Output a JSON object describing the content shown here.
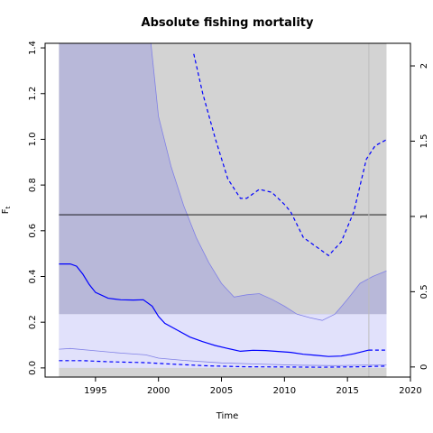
{
  "chart_data": {
    "type": "line",
    "title": "Absolute fishing mortality",
    "xlabel": "Time",
    "ylabel_main": "F",
    "ylabel_sub": "t",
    "xlim": [
      1991,
      2020
    ],
    "ylim_left": [
      -0.04,
      1.42
    ],
    "ylim_right": [
      -0.067,
      2.15
    ],
    "x_ticks": [
      1995,
      2000,
      2005,
      2010,
      2015,
      2020
    ],
    "y_ticks_left": [
      0.0,
      0.2,
      0.4,
      0.6,
      0.8,
      1.0,
      1.2,
      1.4
    ],
    "y_ticks_left_labels": [
      "0.0",
      "0.2",
      "0.4",
      "0.6",
      "0.8",
      "1.0",
      "1.2",
      "1.4"
    ],
    "y_ticks_right": [
      0,
      0.5,
      1,
      1.5,
      2
    ],
    "y_ticks_right_labels": [
      "0",
      "0.5",
      "1",
      "1.5",
      "2"
    ],
    "reference_line": 0.67,
    "prediction_start": 2016.7,
    "colors": {
      "grey_region": "#d3d3d3",
      "ci_fill": "#b8b8d9",
      "lower_band": "#e1e1fb",
      "median_line": "#0000ff",
      "ci_line": "#8080e6",
      "reference_line": "#000000",
      "prediction_marker": "#bdbdbd"
    },
    "lower_band": {
      "x_start": 1992.1,
      "x_end": 2018.1,
      "y_top": 0.235,
      "y_bottom": 0.0
    },
    "grey_region": {
      "x_start": 1992.1,
      "x_end": 2018.1
    },
    "series": [
      {
        "style": "solid",
        "axis": "left",
        "x": [
          1992.1,
          1993.0,
          1993.5,
          1994.0,
          1994.5,
          1995.0,
          1996.0,
          1997.0,
          1998.0,
          1998.8,
          1999.5,
          2000.0,
          2000.5,
          2001.5,
          2002.5,
          2003.5,
          2004.5,
          2005.5,
          2006.5,
          2007.5,
          2008.5,
          2009.5,
          2010.5,
          2011.5,
          2012.5,
          2013.5,
          2014.5,
          2015.5,
          2016.7
        ],
        "y": [
          0.455,
          0.455,
          0.445,
          0.41,
          0.365,
          0.33,
          0.305,
          0.298,
          0.297,
          0.298,
          0.27,
          0.225,
          0.195,
          0.165,
          0.135,
          0.115,
          0.098,
          0.085,
          0.073,
          0.077,
          0.076,
          0.072,
          0.068,
          0.06,
          0.055,
          0.05,
          0.052,
          0.062,
          0.078
        ]
      },
      {
        "style": "dashed",
        "axis": "left",
        "x": [
          2016.7,
          2018.1
        ],
        "y": [
          0.078,
          0.078
        ]
      },
      {
        "style": "dashed",
        "axis": "left",
        "x": [
          1992.1,
          1994.0,
          1996.0,
          1999.0,
          2001.0,
          2004.0,
          2007.0,
          2010.0,
          2013.0,
          2016.0,
          2018.1
        ],
        "y": [
          0.032,
          0.032,
          0.027,
          0.023,
          0.017,
          0.009,
          0.005,
          0.004,
          0.003,
          0.005,
          0.008
        ]
      },
      {
        "style": "dashed",
        "axis": "right",
        "x": [
          2002.8,
          2003.5,
          2004.5,
          2005.5,
          2006.5,
          2007.0,
          2008.0,
          2009.0,
          2010.0,
          2010.5,
          2011.5,
          2012.5,
          2013.5,
          2014.5,
          2015.5,
          2016.5,
          2017.2,
          2018.1
        ],
        "y": [
          2.08,
          1.82,
          1.52,
          1.25,
          1.12,
          1.12,
          1.18,
          1.16,
          1.08,
          1.03,
          0.86,
          0.8,
          0.74,
          0.83,
          1.03,
          1.38,
          1.47,
          1.51
        ]
      }
    ],
    "ci_upper": {
      "x": [
        1992.1,
        1999.4,
        2000.0,
        2001.0,
        2002.0,
        2003.0,
        2004.0,
        2005.0,
        2006.0,
        2007.0,
        2008.0,
        2009.0,
        2010.0,
        2011.0,
        2012.0,
        2013.0,
        2014.0,
        2015.0,
        2016.0,
        2017.0,
        2018.1
      ],
      "y": [
        1.42,
        1.42,
        1.1,
        0.88,
        0.71,
        0.57,
        0.46,
        0.37,
        0.31,
        0.32,
        0.325,
        0.3,
        0.27,
        0.235,
        0.22,
        0.208,
        0.235,
        0.3,
        0.37,
        0.4,
        0.425
      ]
    },
    "ci_lower": {
      "x": [
        1992.1,
        1993.0,
        1995.0,
        1997.0,
        1999.0,
        2000.0,
        2002.0,
        2005.0,
        2008.0,
        2011.0,
        2014.0,
        2016.0,
        2018.1
      ],
      "y": [
        0.082,
        0.085,
        0.075,
        0.065,
        0.057,
        0.043,
        0.033,
        0.022,
        0.017,
        0.012,
        0.01,
        0.012,
        0.013
      ]
    }
  }
}
